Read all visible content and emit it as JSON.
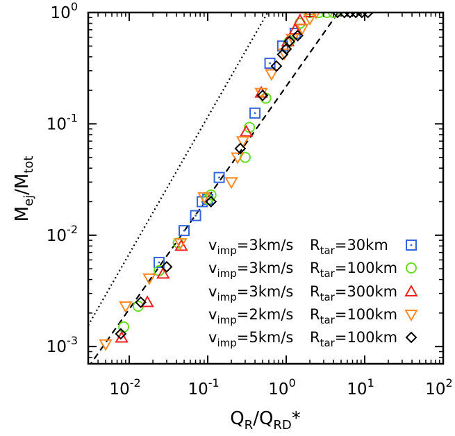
{
  "chart_data": {
    "type": "scatter",
    "x_scale": "log",
    "y_scale": "log",
    "xlim": [
      0.003,
      100
    ],
    "ylim": [
      0.0007,
      1
    ],
    "xlabel": {
      "main": "Q",
      "sub": "R",
      "mid": "/Q",
      "sub2": "RD",
      "tail": "*"
    },
    "ylabel": {
      "main": "M",
      "sub": "ej",
      "mid": "/M",
      "sub2": "tot"
    },
    "x_ticks": [
      {
        "value": 0.01,
        "base": "10",
        "exp": "-2"
      },
      {
        "value": 0.1,
        "base": "10",
        "exp": "-1"
      },
      {
        "value": 1,
        "base": "10",
        "exp": "0"
      },
      {
        "value": 10,
        "base": "10",
        "exp": "1"
      },
      {
        "value": 100,
        "base": "10",
        "exp": "2"
      }
    ],
    "y_ticks": [
      {
        "value": 0.001,
        "base": "10",
        "exp": "-3"
      },
      {
        "value": 0.01,
        "base": "10",
        "exp": "-2"
      },
      {
        "value": 0.1,
        "base": "10",
        "exp": "-1"
      },
      {
        "value": 1,
        "base": "10",
        "exp": "0"
      }
    ],
    "grid": false,
    "legend_position": "bottom-right",
    "lines": [
      {
        "style": "dotted",
        "slope": 1,
        "x": [
          0.003,
          0.58
        ],
        "y": [
          0.00155,
          1
        ]
      },
      {
        "style": "dashed",
        "slope": 1,
        "x": [
          0.003,
          4.6
        ],
        "y": [
          0.00065,
          1
        ]
      }
    ],
    "series": [
      {
        "legend_left": {
          "v": "v",
          "vsub": "imp",
          "vval": "=3km/s"
        },
        "legend_right": {
          "r": "R",
          "rsub": "tar",
          "rval": "=30km"
        },
        "marker": "square",
        "color": "#3366dd",
        "x": [
          0.024,
          0.05,
          0.07,
          0.085,
          0.1,
          0.14,
          0.4,
          0.62,
          0.9,
          1.3
        ],
        "y": [
          0.0057,
          0.011,
          0.015,
          0.02,
          0.021,
          0.033,
          0.125,
          0.35,
          0.5,
          0.65
        ]
      },
      {
        "legend_left": {
          "v": "v",
          "vsub": "imp",
          "vval": "=3km/s"
        },
        "legend_right": {
          "r": "R",
          "rsub": "tar",
          "rval": "=100km"
        },
        "marker": "circle",
        "color": "#66dd22",
        "x": [
          0.0085,
          0.013,
          0.024,
          0.042,
          0.1,
          0.11,
          0.3,
          0.34,
          0.55,
          1.1,
          1.5,
          2.0,
          2.6,
          3.3,
          4.0
        ],
        "y": [
          0.0015,
          0.0023,
          0.0048,
          0.0085,
          0.021,
          0.023,
          0.05,
          0.093,
          0.17,
          0.55,
          0.8,
          1.0,
          1.0,
          1.0,
          1.0
        ]
      },
      {
        "legend_left": {
          "v": "v",
          "vsub": "imp",
          "vval": "=3km/s"
        },
        "legend_right": {
          "r": "R",
          "rsub": "tar",
          "rval": "=300km"
        },
        "marker": "triangle-up",
        "color": "#ee2222",
        "x": [
          0.008,
          0.017,
          0.027,
          0.046,
          0.31,
          0.48,
          1.05,
          1.3,
          1.5,
          2.0
        ],
        "y": [
          0.0012,
          0.0025,
          0.0045,
          0.008,
          0.085,
          0.19,
          0.55,
          0.7,
          0.85,
          1.0
        ]
      },
      {
        "legend_left": {
          "v": "v",
          "vsub": "imp",
          "vval": "=2km/s"
        },
        "legend_right": {
          "r": "R",
          "rsub": "tar",
          "rval": "=100km"
        },
        "marker": "triangle-down",
        "color": "#ff8822",
        "x": [
          0.005,
          0.009,
          0.018,
          0.045,
          0.09,
          0.2,
          0.24,
          0.28,
          0.48,
          0.65,
          0.95,
          1.2,
          1.6,
          2.0,
          2.4
        ],
        "y": [
          0.00105,
          0.0023,
          0.0041,
          0.0085,
          0.022,
          0.03,
          0.05,
          0.07,
          0.19,
          0.28,
          0.43,
          0.58,
          0.72,
          0.88,
          1.0
        ]
      },
      {
        "legend_left": {
          "v": "v",
          "vsub": "imp",
          "vval": "=5km/s"
        },
        "legend_right": {
          "r": "R",
          "rsub": "tar",
          "rval": "=100km"
        },
        "marker": "diamond",
        "color": "#000000",
        "x": [
          0.0078,
          0.014,
          0.03,
          0.11,
          0.26,
          0.5,
          0.75,
          0.9,
          1.0,
          1.1,
          1.4,
          4.5,
          5.5,
          6.5,
          7.7,
          9.2,
          11.0
        ],
        "y": [
          0.0013,
          0.0025,
          0.0052,
          0.02,
          0.06,
          0.18,
          0.33,
          0.42,
          0.47,
          0.55,
          0.62,
          1.0,
          1.0,
          1.0,
          1.0,
          1.0,
          1.0
        ]
      }
    ]
  }
}
